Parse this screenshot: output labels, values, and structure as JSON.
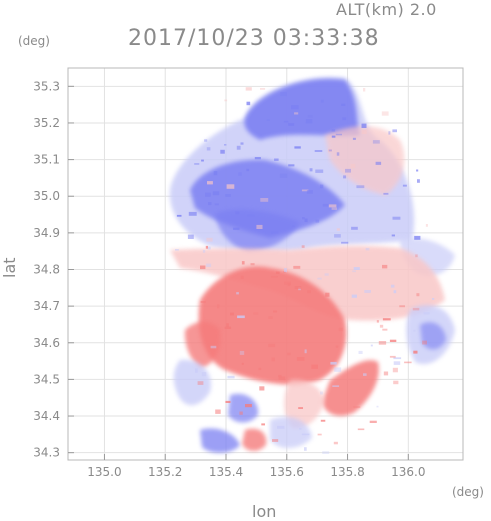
{
  "header": {
    "altitude_label": "ALT(km) 2.0",
    "timestamp": "2017/10/23 03:33:38"
  },
  "axes": {
    "y_unit": "(deg)",
    "x_unit": "(deg)",
    "ylabel": "lat",
    "xlabel": "lon",
    "xlim": [
      134.88,
      136.18
    ],
    "ylim": [
      34.28,
      35.35
    ],
    "x_ticks": [
      "135.0",
      "135.2",
      "135.4",
      "135.6",
      "135.8",
      "136.0"
    ],
    "y_ticks": [
      "34.3",
      "34.4",
      "34.5",
      "34.6",
      "34.7",
      "34.8",
      "34.9",
      "35.0",
      "35.1",
      "35.2",
      "35.3"
    ]
  },
  "colors": {
    "approaching": "#7b80f2",
    "approaching_light": "#c9ccf8",
    "receding": "#f57c7c",
    "receding_light": "#f9c7c7",
    "frame": "#b8b8b8",
    "grid": "#e2e2e2"
  }
}
